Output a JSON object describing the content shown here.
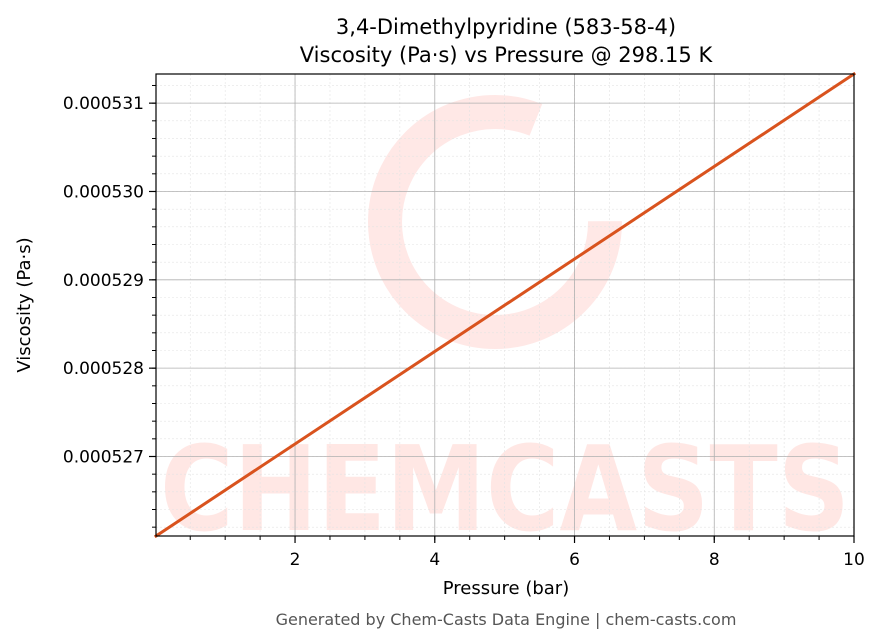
{
  "chart_data": {
    "type": "line",
    "title_line1": "3,4-Dimethylpyridine (583-58-4)",
    "title_line2": "Viscosity (Pa·s) vs Pressure @ 298.15 K",
    "xlabel": "Pressure (bar)",
    "ylabel": "Viscosity (Pa·s)",
    "xlim": [
      0.01,
      10
    ],
    "ylim": [
      0.0005261,
      0.00053133
    ],
    "x_ticks": [
      2,
      4,
      6,
      8,
      10
    ],
    "x_tick_labels": [
      "2",
      "4",
      "6",
      "8",
      "10"
    ],
    "y_ticks": [
      0.000527,
      0.000528,
      0.000529,
      0.00053,
      0.000531
    ],
    "y_tick_labels": [
      "0.000527",
      "0.000528",
      "0.000529",
      "0.000530",
      "0.000531"
    ],
    "grid": true,
    "series": [
      {
        "color": "#d9531e",
        "x": [
          0.01,
          10
        ],
        "y": [
          0.0005261,
          0.00053133
        ]
      }
    ]
  },
  "watermark_text": "CHEMCASTS",
  "footer": "Generated by Chem-Casts Data Engine | chem-casts.com"
}
